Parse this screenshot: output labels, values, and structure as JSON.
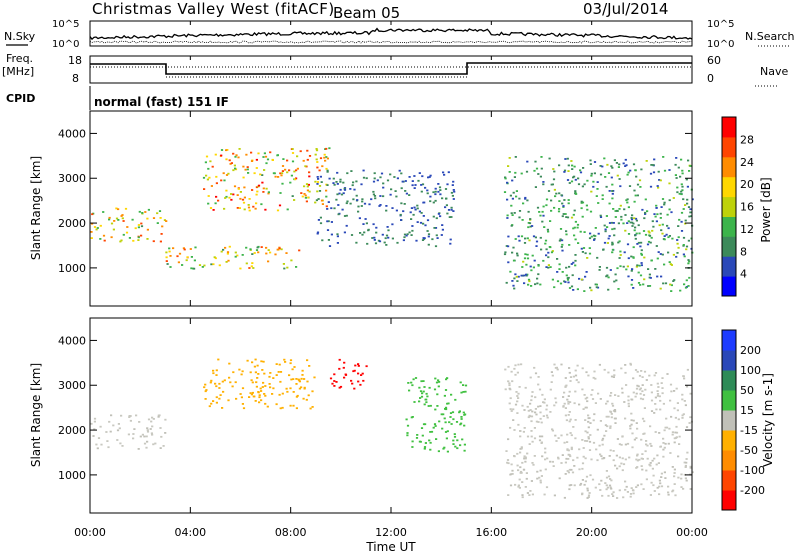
{
  "header": {
    "station": "Christmas Valley West (fitACF)",
    "beam": "Beam 05",
    "date": "03/Jul/2014"
  },
  "status_panel": {
    "nsky_label": "N.Sky",
    "nsearch_label": "N.Search",
    "noise_ticks_left": [
      "10^5",
      "10^0"
    ],
    "noise_ticks_right": [
      "10^5",
      "10^0"
    ],
    "freq_label_1": "Freq.",
    "freq_label_2": "[MHz]",
    "freq_ticks": [
      "18",
      "8"
    ],
    "nave_label": "Nave",
    "nave_ticks": [
      "60",
      "0"
    ],
    "cpid_label": "CPID",
    "cpid_value": "normal (fast) 151 IF"
  },
  "colors": {
    "power_scale": [
      "#0000ff",
      "#2a48b8",
      "#3c8a5a",
      "#3cb44b",
      "#bed20a",
      "#ffd700",
      "#ff8c00",
      "#ff4500",
      "#ff0000"
    ],
    "velocity_scale": [
      "#1e3cff",
      "#2a48b8",
      "#2e8b57",
      "#40c040",
      "#c0c0b8",
      "#ffb000",
      "#ff8c00",
      "#ff4500",
      "#ff0000"
    ],
    "ground_scatter": "#c8c8c0"
  },
  "chart_data": [
    {
      "type": "heatmap",
      "name": "power",
      "xlabel": "Time UT",
      "ylabel": "Slant Range [km]",
      "x_ticks": [
        "00:00",
        "04:00",
        "08:00",
        "12:00",
        "16:00",
        "20:00",
        "00:00"
      ],
      "y_ticks": [
        "1000",
        "2000",
        "3000",
        "4000"
      ],
      "xlim": [
        0,
        24
      ],
      "ylim": [
        150,
        4500
      ],
      "colorbar": {
        "label": "Power [dB]",
        "ticks": [
          "4",
          "8",
          "12",
          "16",
          "20",
          "24",
          "28"
        ],
        "range": [
          0,
          30
        ]
      },
      "features": [
        {
          "t": [
            0.0,
            3.0
          ],
          "r": [
            1600,
            2350
          ],
          "peak_db": 26
        },
        {
          "t": [
            3.0,
            8.5
          ],
          "r": [
            1000,
            1500
          ],
          "peak_db": 26
        },
        {
          "t": [
            4.5,
            9.5
          ],
          "r": [
            2300,
            3700
          ],
          "peak_db": 28
        },
        {
          "t": [
            9.0,
            14.5
          ],
          "r": [
            1500,
            3200
          ],
          "peak_db": 10
        },
        {
          "t": [
            16.5,
            24.0
          ],
          "r": [
            500,
            3500
          ],
          "peak_db": 14
        }
      ]
    },
    {
      "type": "heatmap",
      "name": "velocity",
      "xlabel": "Time UT",
      "ylabel": "Slant Range [km]",
      "x_ticks": [
        "00:00",
        "04:00",
        "08:00",
        "12:00",
        "16:00",
        "20:00",
        "00:00"
      ],
      "y_ticks": [
        "1000",
        "2000",
        "3000",
        "4000"
      ],
      "xlim": [
        0,
        24
      ],
      "ylim": [
        150,
        4500
      ],
      "colorbar": {
        "label": "Velocity [m s-1]",
        "ticks": [
          "200",
          "100",
          "50",
          "15",
          "-15",
          "-50",
          "-100",
          "-200"
        ],
        "range": [
          -250,
          250
        ]
      },
      "features": [
        {
          "t": [
            0.0,
            3.0
          ],
          "r": [
            1600,
            2350
          ],
          "velocity": 0
        },
        {
          "t": [
            4.5,
            9.0
          ],
          "r": [
            2500,
            3600
          ],
          "velocity": -60
        },
        {
          "t": [
            9.5,
            11.0
          ],
          "r": [
            2900,
            3600
          ],
          "velocity": -220
        },
        {
          "t": [
            12.5,
            15.0
          ],
          "r": [
            1500,
            3200
          ],
          "velocity": 60
        },
        {
          "t": [
            16.5,
            24.0
          ],
          "r": [
            500,
            3500
          ],
          "velocity": 0
        }
      ]
    }
  ]
}
